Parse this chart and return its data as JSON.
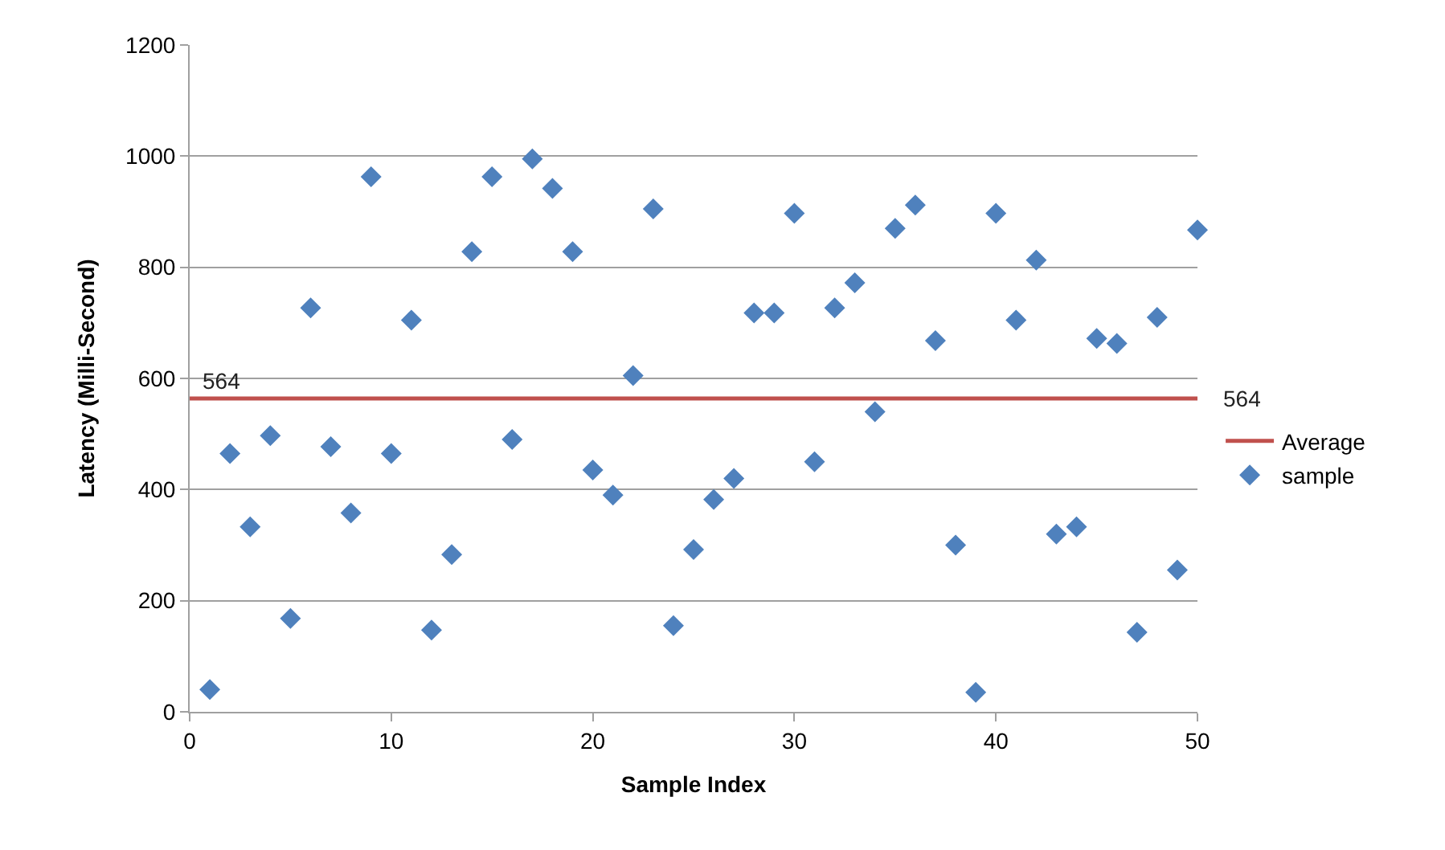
{
  "chart_data": {
    "type": "scatter",
    "xlabel": "Sample Index",
    "ylabel": "Latency (Milli-Second)",
    "xlim": [
      0,
      50
    ],
    "xticks": [
      0,
      10,
      20,
      30,
      40,
      50
    ],
    "ylim": [
      0,
      1200
    ],
    "yticks": [
      0,
      200,
      400,
      600,
      800,
      1000,
      1200
    ],
    "grid": "y",
    "legend": "right",
    "marker": "diamond",
    "series": [
      {
        "name": "Average",
        "type": "line",
        "color": "#c0504d",
        "x": [
          0,
          50
        ],
        "values": [
          564,
          564
        ],
        "value_labels": [
          "564",
          "564"
        ],
        "marker": "none"
      },
      {
        "name": "sample",
        "color": "#4f81bd",
        "x": [
          1,
          2,
          3,
          4,
          5,
          6,
          7,
          8,
          9,
          10,
          11,
          12,
          13,
          14,
          15,
          16,
          17,
          18,
          19,
          20,
          21,
          22,
          23,
          24,
          25,
          26,
          27,
          28,
          29,
          30,
          31,
          32,
          33,
          34,
          35,
          36,
          37,
          38,
          39,
          40,
          41,
          42,
          43,
          44,
          45,
          46,
          47,
          48,
          49,
          50
        ],
        "values": [
          40,
          465,
          333,
          497,
          168,
          727,
          477,
          358,
          963,
          465,
          705,
          147,
          283,
          828,
          963,
          490,
          995,
          942,
          828,
          435,
          390,
          605,
          905,
          155,
          292,
          382,
          420,
          718,
          718,
          897,
          450,
          727,
          772,
          540,
          870,
          912,
          668,
          300,
          35,
          897,
          705,
          813,
          320,
          333,
          672,
          663,
          143,
          710,
          255,
          867
        ]
      }
    ]
  }
}
